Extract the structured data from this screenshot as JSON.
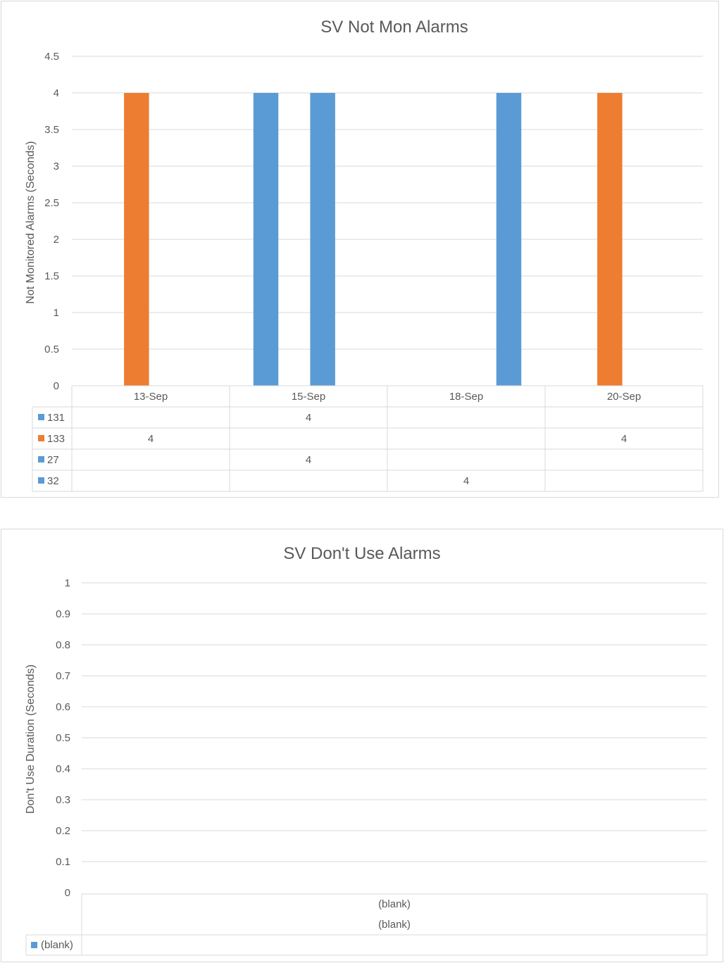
{
  "chart_data": [
    {
      "type": "bar",
      "title": "SV Not Mon Alarms",
      "xlabel": "",
      "ylabel": "Not Monitored Alarms (Seconds)",
      "ylim": [
        0,
        4.5
      ],
      "yticks": [
        "0",
        "0.5",
        "1",
        "1.5",
        "2",
        "2.5",
        "3",
        "3.5",
        "4",
        "4.5"
      ],
      "categories": [
        "13-Sep",
        "15-Sep",
        "18-Sep",
        "20-Sep"
      ],
      "grid": true,
      "legend": "data-table",
      "series": [
        {
          "name": "131",
          "color": "#5b9bd5",
          "values": [
            null,
            4,
            null,
            null
          ]
        },
        {
          "name": "133",
          "color": "#ed7d31",
          "values": [
            4,
            null,
            null,
            4
          ]
        },
        {
          "name": "27",
          "color": "#5b9bd5",
          "values": [
            null,
            4,
            null,
            null
          ]
        },
        {
          "name": "32",
          "color": "#5b9bd5",
          "values": [
            null,
            null,
            4,
            null
          ]
        }
      ],
      "table_cells": [
        [
          "",
          "4",
          "",
          ""
        ],
        [
          "4",
          "",
          "",
          "4"
        ],
        [
          "",
          "4",
          "",
          ""
        ],
        [
          "",
          "",
          "4",
          ""
        ]
      ]
    },
    {
      "type": "bar",
      "title": "SV Don't Use Alarms",
      "xlabel": "",
      "ylabel": "Don't Use Duration (Seconds)",
      "ylim": [
        0,
        1
      ],
      "yticks": [
        "0",
        "0.1",
        "0.2",
        "0.3",
        "0.4",
        "0.5",
        "0.6",
        "0.7",
        "0.8",
        "0.9",
        "1"
      ],
      "category_levels": [
        "(blank)",
        "(blank)"
      ],
      "grid": true,
      "legend": "data-table",
      "series": [
        {
          "name": "(blank)",
          "color": "#5b9bd5",
          "values": [
            null
          ]
        }
      ],
      "table_cells": [
        [
          ""
        ]
      ]
    }
  ]
}
